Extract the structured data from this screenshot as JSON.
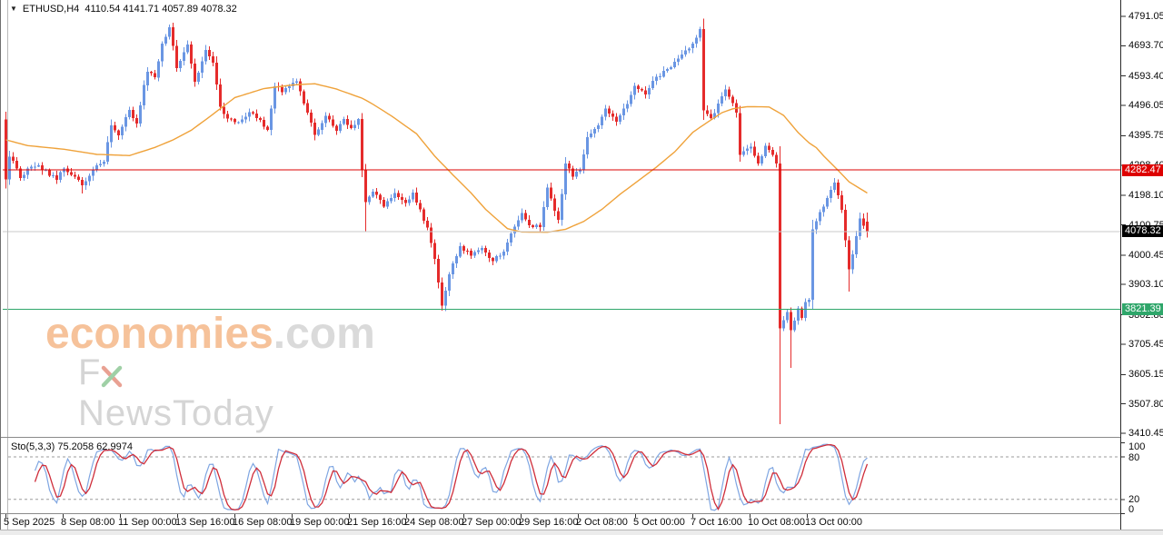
{
  "header": {
    "text": "ETHUSD,H4  4110.54 4141.71 4057.89 4078.32"
  },
  "watermark": {
    "brand": "economies",
    "brand_suffix": ".com",
    "sub_f": "F",
    "sub_rest": "NewsToday"
  },
  "colors": {
    "bull": "#6a96e3",
    "bear": "#e52b2b",
    "ma": "#efa23a",
    "sto_main": "#7fa6e2",
    "sto_signal": "#cf2d3a",
    "resistance": "#dd0000",
    "support": "#2fa66a",
    "current_line": "#c8c8c8",
    "current_tag_bg": "#000000",
    "axis_border": "#2b2b2b",
    "panel_border": "#8a8a8a",
    "dash_level": "#9b9b9b",
    "bottom_strip": "#ececec"
  },
  "chart_data": {
    "type": "candlestick",
    "symbol": "ETHUSD",
    "timeframe": "H4",
    "last_bar": {
      "open": 4110.54,
      "high": 4141.71,
      "low": 4057.89,
      "close": 4078.32
    },
    "price_axis": {
      "min": 3410.45,
      "max": 4791.05,
      "labels": [
        "4791.05",
        "4693.70",
        "4593.40",
        "4496.05",
        "4395.75",
        "4298.40",
        "4198.10",
        "4100.75",
        "4000.45",
        "3903.10",
        "3802.80",
        "3705.45",
        "3605.15",
        "3507.80",
        "3410.45"
      ]
    },
    "time_axis": {
      "labels": [
        "5 Sep 2025",
        "8 Sep 08:00",
        "11 Sep 00:00",
        "13 Sep 16:00",
        "16 Sep 08:00",
        "19 Sep 00:00",
        "21 Sep 16:00",
        "24 Sep 08:00",
        "27 Sep 00:00",
        "29 Sep 16:00",
        "2 Oct 08:00",
        "5 Oct 00:00",
        "7 Oct 16:00",
        "10 Oct 08:00",
        "13 Oct 00:00"
      ]
    },
    "levels": {
      "resistance": {
        "text": "4282.47",
        "price": 4282.47
      },
      "current": {
        "text": "4078.32",
        "price": 4078.32
      },
      "support": {
        "text": "3821.39",
        "price": 3821.39
      }
    },
    "bars": 238,
    "bar_open_first": 4450,
    "close_anchors": [
      [
        0,
        4250
      ],
      [
        1,
        4325
      ],
      [
        2,
        4312
      ],
      [
        4,
        4255
      ],
      [
        6,
        4288
      ],
      [
        9,
        4296
      ],
      [
        14,
        4252
      ],
      [
        16,
        4288
      ],
      [
        19,
        4262
      ],
      [
        21,
        4232
      ],
      [
        24,
        4282
      ],
      [
        27,
        4312
      ],
      [
        29,
        4432
      ],
      [
        31,
        4396
      ],
      [
        34,
        4482
      ],
      [
        36,
        4436
      ],
      [
        38,
        4562
      ],
      [
        39,
        4606
      ],
      [
        41,
        4590
      ],
      [
        43,
        4700
      ],
      [
        45,
        4756
      ],
      [
        47,
        4620
      ],
      [
        50,
        4700
      ],
      [
        52,
        4576
      ],
      [
        54,
        4642
      ],
      [
        55,
        4680
      ],
      [
        57,
        4640
      ],
      [
        59,
        4490
      ],
      [
        61,
        4452
      ],
      [
        64,
        4440
      ],
      [
        67,
        4472
      ],
      [
        70,
        4446
      ],
      [
        72,
        4415
      ],
      [
        74,
        4560
      ],
      [
        76,
        4540
      ],
      [
        80,
        4576
      ],
      [
        83,
        4470
      ],
      [
        85,
        4400
      ],
      [
        88,
        4460
      ],
      [
        91,
        4410
      ],
      [
        93,
        4450
      ],
      [
        95,
        4420
      ],
      [
        97,
        4452
      ],
      [
        98,
        4285
      ],
      [
        99,
        4178
      ],
      [
        101,
        4212
      ],
      [
        104,
        4160
      ],
      [
        107,
        4206
      ],
      [
        110,
        4172
      ],
      [
        112,
        4210
      ],
      [
        114,
        4150
      ],
      [
        116,
        4090
      ],
      [
        118,
        3990
      ],
      [
        120,
        3832
      ],
      [
        122,
        3936
      ],
      [
        125,
        4030
      ],
      [
        128,
        4000
      ],
      [
        131,
        4022
      ],
      [
        134,
        3982
      ],
      [
        137,
        4012
      ],
      [
        140,
        4092
      ],
      [
        142,
        4142
      ],
      [
        144,
        4100
      ],
      [
        147,
        4092
      ],
      [
        149,
        4222
      ],
      [
        150,
        4190
      ],
      [
        152,
        4115
      ],
      [
        154,
        4302
      ],
      [
        156,
        4262
      ],
      [
        158,
        4282
      ],
      [
        160,
        4392
      ],
      [
        163,
        4430
      ],
      [
        165,
        4486
      ],
      [
        168,
        4442
      ],
      [
        171,
        4502
      ],
      [
        173,
        4562
      ],
      [
        176,
        4532
      ],
      [
        178,
        4576
      ],
      [
        184,
        4640
      ],
      [
        189,
        4700
      ],
      [
        191,
        4750
      ],
      [
        192,
        4480
      ],
      [
        194,
        4452
      ],
      [
        196,
        4502
      ],
      [
        198,
        4550
      ],
      [
        201,
        4470
      ],
      [
        202,
        4330
      ],
      [
        205,
        4362
      ],
      [
        207,
        4302
      ],
      [
        209,
        4362
      ],
      [
        211,
        4330
      ],
      [
        212,
        4302
      ],
      [
        213,
        3760
      ],
      [
        215,
        3812
      ],
      [
        216,
        3750
      ],
      [
        218,
        3822
      ],
      [
        219,
        3792
      ],
      [
        220,
        3845
      ],
      [
        221,
        3855
      ],
      [
        222,
        4085
      ],
      [
        224,
        4142
      ],
      [
        226,
        4192
      ],
      [
        228,
        4240
      ],
      [
        230,
        4152
      ],
      [
        232,
        3952
      ],
      [
        235,
        4122
      ],
      [
        237,
        4078.32
      ]
    ],
    "wick_extremes": [
      [
        21,
        4205
      ],
      [
        45,
        4762
      ],
      [
        99,
        4080
      ],
      [
        120,
        3817
      ],
      [
        191,
        4757
      ],
      [
        213,
        3440
      ],
      [
        216,
        3627
      ],
      [
        228,
        4256
      ],
      [
        232,
        3880
      ]
    ],
    "moving_average": {
      "name": "SMA",
      "points": [
        [
          0,
          4382
        ],
        [
          6,
          4363
        ],
        [
          16,
          4351
        ],
        [
          25,
          4334
        ],
        [
          34,
          4330
        ],
        [
          41,
          4357
        ],
        [
          46,
          4382
        ],
        [
          51,
          4414
        ],
        [
          56,
          4458
        ],
        [
          63,
          4522
        ],
        [
          71,
          4552
        ],
        [
          79,
          4564
        ],
        [
          85,
          4568
        ],
        [
          91,
          4550
        ],
        [
          98,
          4520
        ],
        [
          101,
          4500
        ],
        [
          106,
          4462
        ],
        [
          113,
          4402
        ],
        [
          118,
          4328
        ],
        [
          123,
          4266
        ],
        [
          128,
          4206
        ],
        [
          132,
          4152
        ],
        [
          138,
          4088
        ],
        [
          142,
          4077
        ],
        [
          149,
          4076
        ],
        [
          154,
          4086
        ],
        [
          159,
          4112
        ],
        [
          164,
          4152
        ],
        [
          169,
          4202
        ],
        [
          174,
          4247
        ],
        [
          179,
          4292
        ],
        [
          184,
          4342
        ],
        [
          189,
          4407
        ],
        [
          192,
          4432
        ],
        [
          197,
          4472
        ],
        [
          200,
          4485
        ],
        [
          204,
          4492
        ],
        [
          210,
          4491
        ],
        [
          214,
          4463
        ],
        [
          218,
          4406
        ],
        [
          221,
          4372
        ],
        [
          223,
          4356
        ],
        [
          225,
          4329
        ],
        [
          229,
          4281
        ],
        [
          232,
          4243
        ],
        [
          237,
          4206
        ]
      ]
    },
    "indicator": {
      "name": "Stochastic",
      "label": "Sto(5,3,3) 75.2058 62.9974",
      "k_period": 5,
      "d_period": 3,
      "slowing": 3,
      "main_value": 75.2058,
      "signal_value": 62.9974,
      "scale_labels": [
        "100",
        "80",
        "20",
        "0"
      ],
      "scale_values": [
        100,
        80,
        20,
        0
      ],
      "level_lines": [
        80,
        20
      ],
      "range": [
        0,
        100
      ]
    }
  }
}
